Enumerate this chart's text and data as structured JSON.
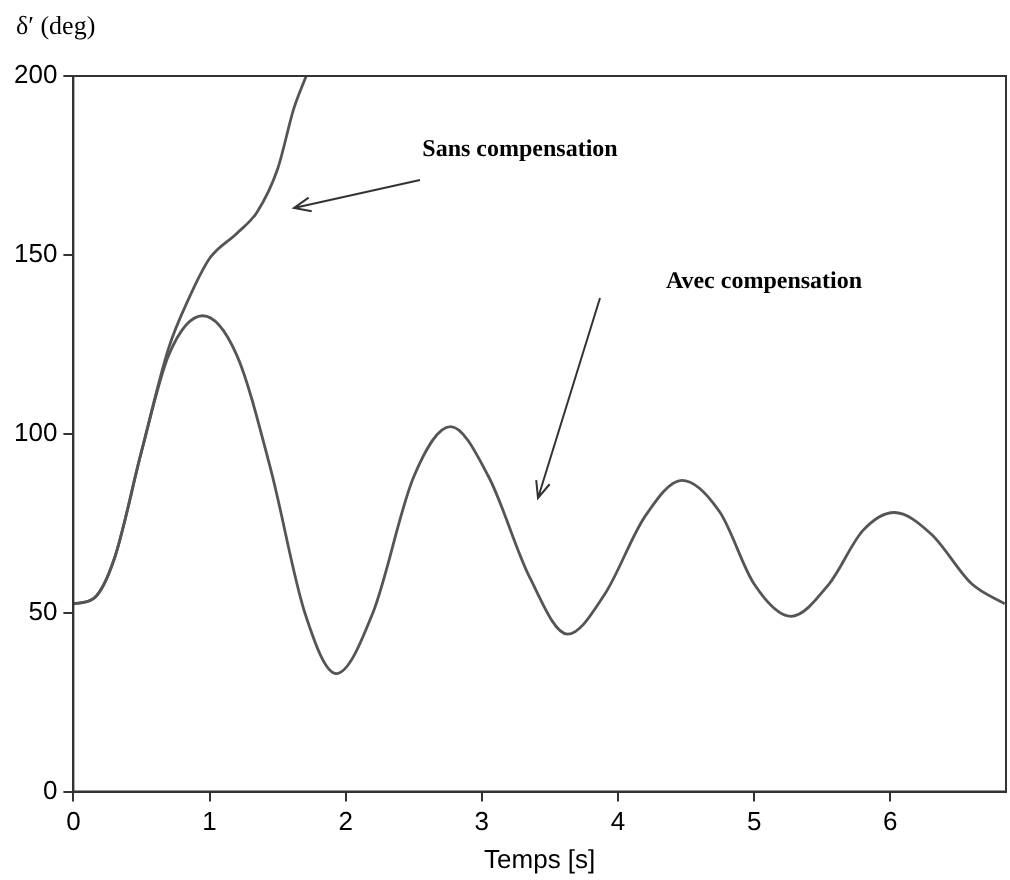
{
  "chart_data": {
    "type": "line",
    "xlabel": "Temps [s]",
    "ylabel": "δ′ (deg)",
    "xlim": [
      0,
      6.85
    ],
    "ylim": [
      0,
      200
    ],
    "xticks": [
      0,
      1,
      2,
      3,
      4,
      5,
      6
    ],
    "yticks": [
      0,
      50,
      100,
      150,
      200
    ],
    "grid": false,
    "legend": false,
    "marker": "none",
    "line_style": "solid",
    "series": [
      {
        "color": "#555555",
        "x": [
          0,
          0.15,
          0.3,
          0.5,
          0.7,
          0.85,
          1.0,
          1.2,
          1.35,
          1.5,
          1.62,
          1.71
        ],
        "values": [
          52.5,
          54,
          65,
          95,
          124,
          138,
          149,
          156,
          162,
          174,
          191,
          200
        ]
      },
      {
        "color": "#555555",
        "x": [
          0,
          0.15,
          0.3,
          0.5,
          0.7,
          0.95,
          1.2,
          1.45,
          1.7,
          1.93,
          2.2,
          2.5,
          2.77,
          3.05,
          3.35,
          3.63,
          3.9,
          4.2,
          4.47,
          4.75,
          5.0,
          5.27,
          5.55,
          5.8,
          6.03,
          6.3,
          6.6,
          6.84
        ],
        "values": [
          52.5,
          54,
          65,
          95,
          122,
          133,
          122,
          90,
          50,
          33,
          50,
          88,
          102,
          88,
          60,
          44,
          55,
          77,
          87,
          78,
          58,
          49,
          58,
          73,
          78,
          72,
          58,
          52.5
        ]
      }
    ],
    "annotations": [
      "Sans compensation",
      "Avec compensation"
    ]
  }
}
